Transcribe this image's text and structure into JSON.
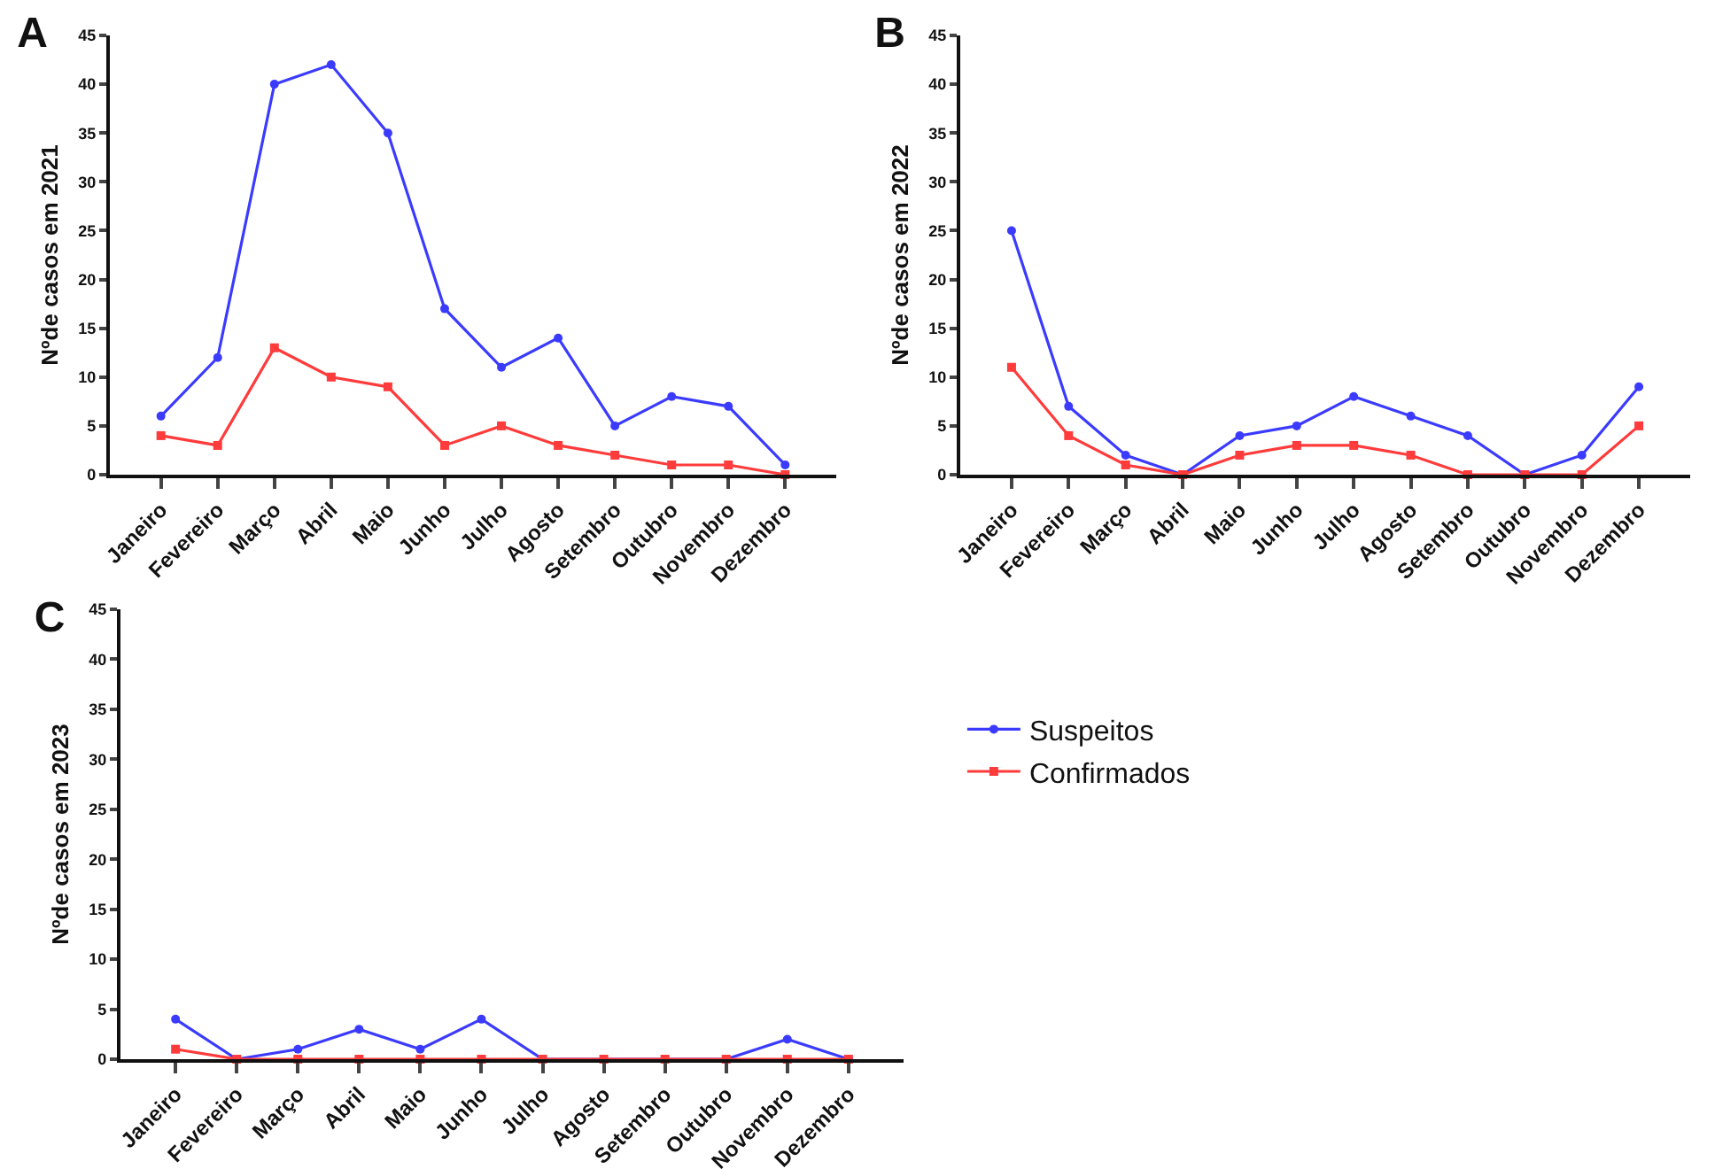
{
  "chart_data": [
    {
      "type": "line",
      "title": "A",
      "ylabel": "Nºde casos em 2021",
      "categories": [
        "Janeiro",
        "Fevereiro",
        "Março",
        "Abril",
        "Maio",
        "Junho",
        "Julho",
        "Agosto",
        "Setembro",
        "Outubro",
        "Novembro",
        "Dezembro"
      ],
      "ylim": [
        0,
        45
      ],
      "yticks": [
        0,
        5,
        10,
        15,
        20,
        25,
        30,
        35,
        40,
        45
      ],
      "grid": false,
      "legend": false,
      "series": [
        {
          "color": "#3b3bff",
          "marker": "circle",
          "values": [
            6,
            12,
            40,
            42,
            35,
            17,
            11,
            14,
            5,
            8,
            7,
            1
          ]
        },
        {
          "color": "#ff3b3b",
          "marker": "square",
          "values": [
            4,
            3,
            13,
            10,
            9,
            3,
            5,
            3,
            2,
            1,
            1,
            0
          ]
        }
      ]
    },
    {
      "type": "line",
      "title": "B",
      "ylabel": "Nºde casos em 2022",
      "categories": [
        "Janeiro",
        "Fevereiro",
        "Março",
        "Abril",
        "Maio",
        "Junho",
        "Julho",
        "Agosto",
        "Setembro",
        "Outubro",
        "Novembro",
        "Dezembro"
      ],
      "ylim": [
        0,
        45
      ],
      "yticks": [
        0,
        5,
        10,
        15,
        20,
        25,
        30,
        35,
        40,
        45
      ],
      "grid": false,
      "legend": false,
      "series": [
        {
          "color": "#3b3bff",
          "marker": "circle",
          "values": [
            25,
            7,
            2,
            0,
            4,
            5,
            8,
            6,
            4,
            0,
            2,
            9
          ]
        },
        {
          "color": "#ff3b3b",
          "marker": "square",
          "values": [
            11,
            4,
            1,
            0,
            2,
            3,
            3,
            2,
            0,
            0,
            0,
            5
          ]
        }
      ]
    },
    {
      "type": "line",
      "title": "C",
      "ylabel": "Nºde casos em 2023",
      "categories": [
        "Janeiro",
        "Fevereiro",
        "Março",
        "Abril",
        "Maio",
        "Junho",
        "Julho",
        "Agosto",
        "Setembro",
        "Outubro",
        "Novembro",
        "Dezembro"
      ],
      "ylim": [
        0,
        45
      ],
      "yticks": [
        0,
        5,
        10,
        15,
        20,
        25,
        30,
        35,
        40,
        45
      ],
      "grid": false,
      "legend": "right",
      "series": [
        {
          "name": "Suspeitos",
          "color": "#3b3bff",
          "marker": "circle",
          "values": [
            4,
            0,
            1,
            3,
            1,
            4,
            0,
            0,
            0,
            0,
            2,
            0
          ]
        },
        {
          "name": "Confirmados",
          "color": "#ff3b3b",
          "marker": "square",
          "values": [
            1,
            0,
            0,
            0,
            0,
            0,
            0,
            0,
            0,
            0,
            0,
            0
          ]
        }
      ]
    }
  ]
}
